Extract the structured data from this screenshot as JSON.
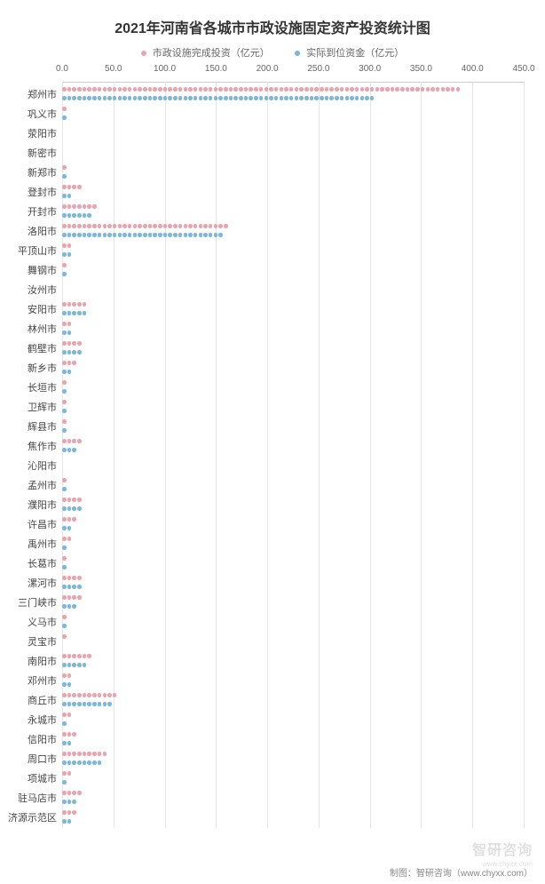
{
  "chart": {
    "type": "dot-bar-horizontal",
    "title": "2021年河南省各城市市政设施固定资产投资统计图",
    "title_fontsize": 16,
    "title_color": "#333333",
    "background_color": "#ffffff",
    "legend": {
      "items": [
        {
          "label": "市政设施完成投资（亿元）",
          "color": "#e8a5b0"
        },
        {
          "label": "实际到位资金（亿元）",
          "color": "#7bb8d9"
        }
      ],
      "fontsize": 11
    },
    "x_axis": {
      "min": 0,
      "max": 450,
      "tick_step": 50,
      "ticks": [
        "0.0",
        "50.0",
        "100.0",
        "150.0",
        "200.0",
        "250.0",
        "300.0",
        "350.0",
        "400.0",
        "450.0"
      ],
      "label_fontsize": 10,
      "label_color": "#666666",
      "grid_color": "#e5e5e5"
    },
    "y_axis": {
      "label_fontsize": 11,
      "label_color": "#444444"
    },
    "series_colors": {
      "a": "#e8a5b0",
      "b": "#7bb8d9"
    },
    "dot_unit_value": 5,
    "categories": [
      {
        "name": "郑州市",
        "a": 395,
        "b": 310
      },
      {
        "name": "巩义市",
        "a": 5,
        "b": 5
      },
      {
        "name": "荥阳市",
        "a": 2,
        "b": 2
      },
      {
        "name": "新密市",
        "a": 2,
        "b": 2
      },
      {
        "name": "新郑市",
        "a": 5,
        "b": 5
      },
      {
        "name": "登封市",
        "a": 20,
        "b": 10
      },
      {
        "name": "开封市",
        "a": 35,
        "b": 30
      },
      {
        "name": "洛阳市",
        "a": 165,
        "b": 160
      },
      {
        "name": "平顶山市",
        "a": 10,
        "b": 10
      },
      {
        "name": "舞钢市",
        "a": 3,
        "b": 3
      },
      {
        "name": "汝州市",
        "a": 2,
        "b": 2
      },
      {
        "name": "安阳市",
        "a": 25,
        "b": 25
      },
      {
        "name": "林州市",
        "a": 8,
        "b": 8
      },
      {
        "name": "鹤壁市",
        "a": 20,
        "b": 18
      },
      {
        "name": "新乡市",
        "a": 15,
        "b": 12
      },
      {
        "name": "长垣市",
        "a": 3,
        "b": 3
      },
      {
        "name": "卫辉市",
        "a": 5,
        "b": 5
      },
      {
        "name": "辉县市",
        "a": 5,
        "b": 5
      },
      {
        "name": "焦作市",
        "a": 18,
        "b": 15
      },
      {
        "name": "沁阳市",
        "a": 2,
        "b": 2
      },
      {
        "name": "孟州市",
        "a": 5,
        "b": 5
      },
      {
        "name": "濮阳市",
        "a": 20,
        "b": 18
      },
      {
        "name": "许昌市",
        "a": 15,
        "b": 12
      },
      {
        "name": "禹州市",
        "a": 8,
        "b": 5
      },
      {
        "name": "长葛市",
        "a": 5,
        "b": 3
      },
      {
        "name": "漯河市",
        "a": 22,
        "b": 18
      },
      {
        "name": "三门峡市",
        "a": 18,
        "b": 15
      },
      {
        "name": "义马市",
        "a": 5,
        "b": 5
      },
      {
        "name": "灵宝市",
        "a": 3,
        "b": 2
      },
      {
        "name": "南阳市",
        "a": 30,
        "b": 25
      },
      {
        "name": "邓州市",
        "a": 10,
        "b": 8
      },
      {
        "name": "商丘市",
        "a": 55,
        "b": 50
      },
      {
        "name": "永城市",
        "a": 8,
        "b": 5
      },
      {
        "name": "信阳市",
        "a": 15,
        "b": 12
      },
      {
        "name": "周口市",
        "a": 45,
        "b": 40
      },
      {
        "name": "项城市",
        "a": 8,
        "b": 5
      },
      {
        "name": "驻马店市",
        "a": 20,
        "b": 15
      },
      {
        "name": "济源示范区",
        "a": 15,
        "b": 12
      }
    ],
    "footer": "制图：智研咨询（www.chyxx.com）",
    "footer_fontsize": 10,
    "watermark": {
      "main": "智研咨询",
      "sub": "www.chyxx.com",
      "fontsize_main": 16,
      "fontsize_sub": 8
    }
  }
}
